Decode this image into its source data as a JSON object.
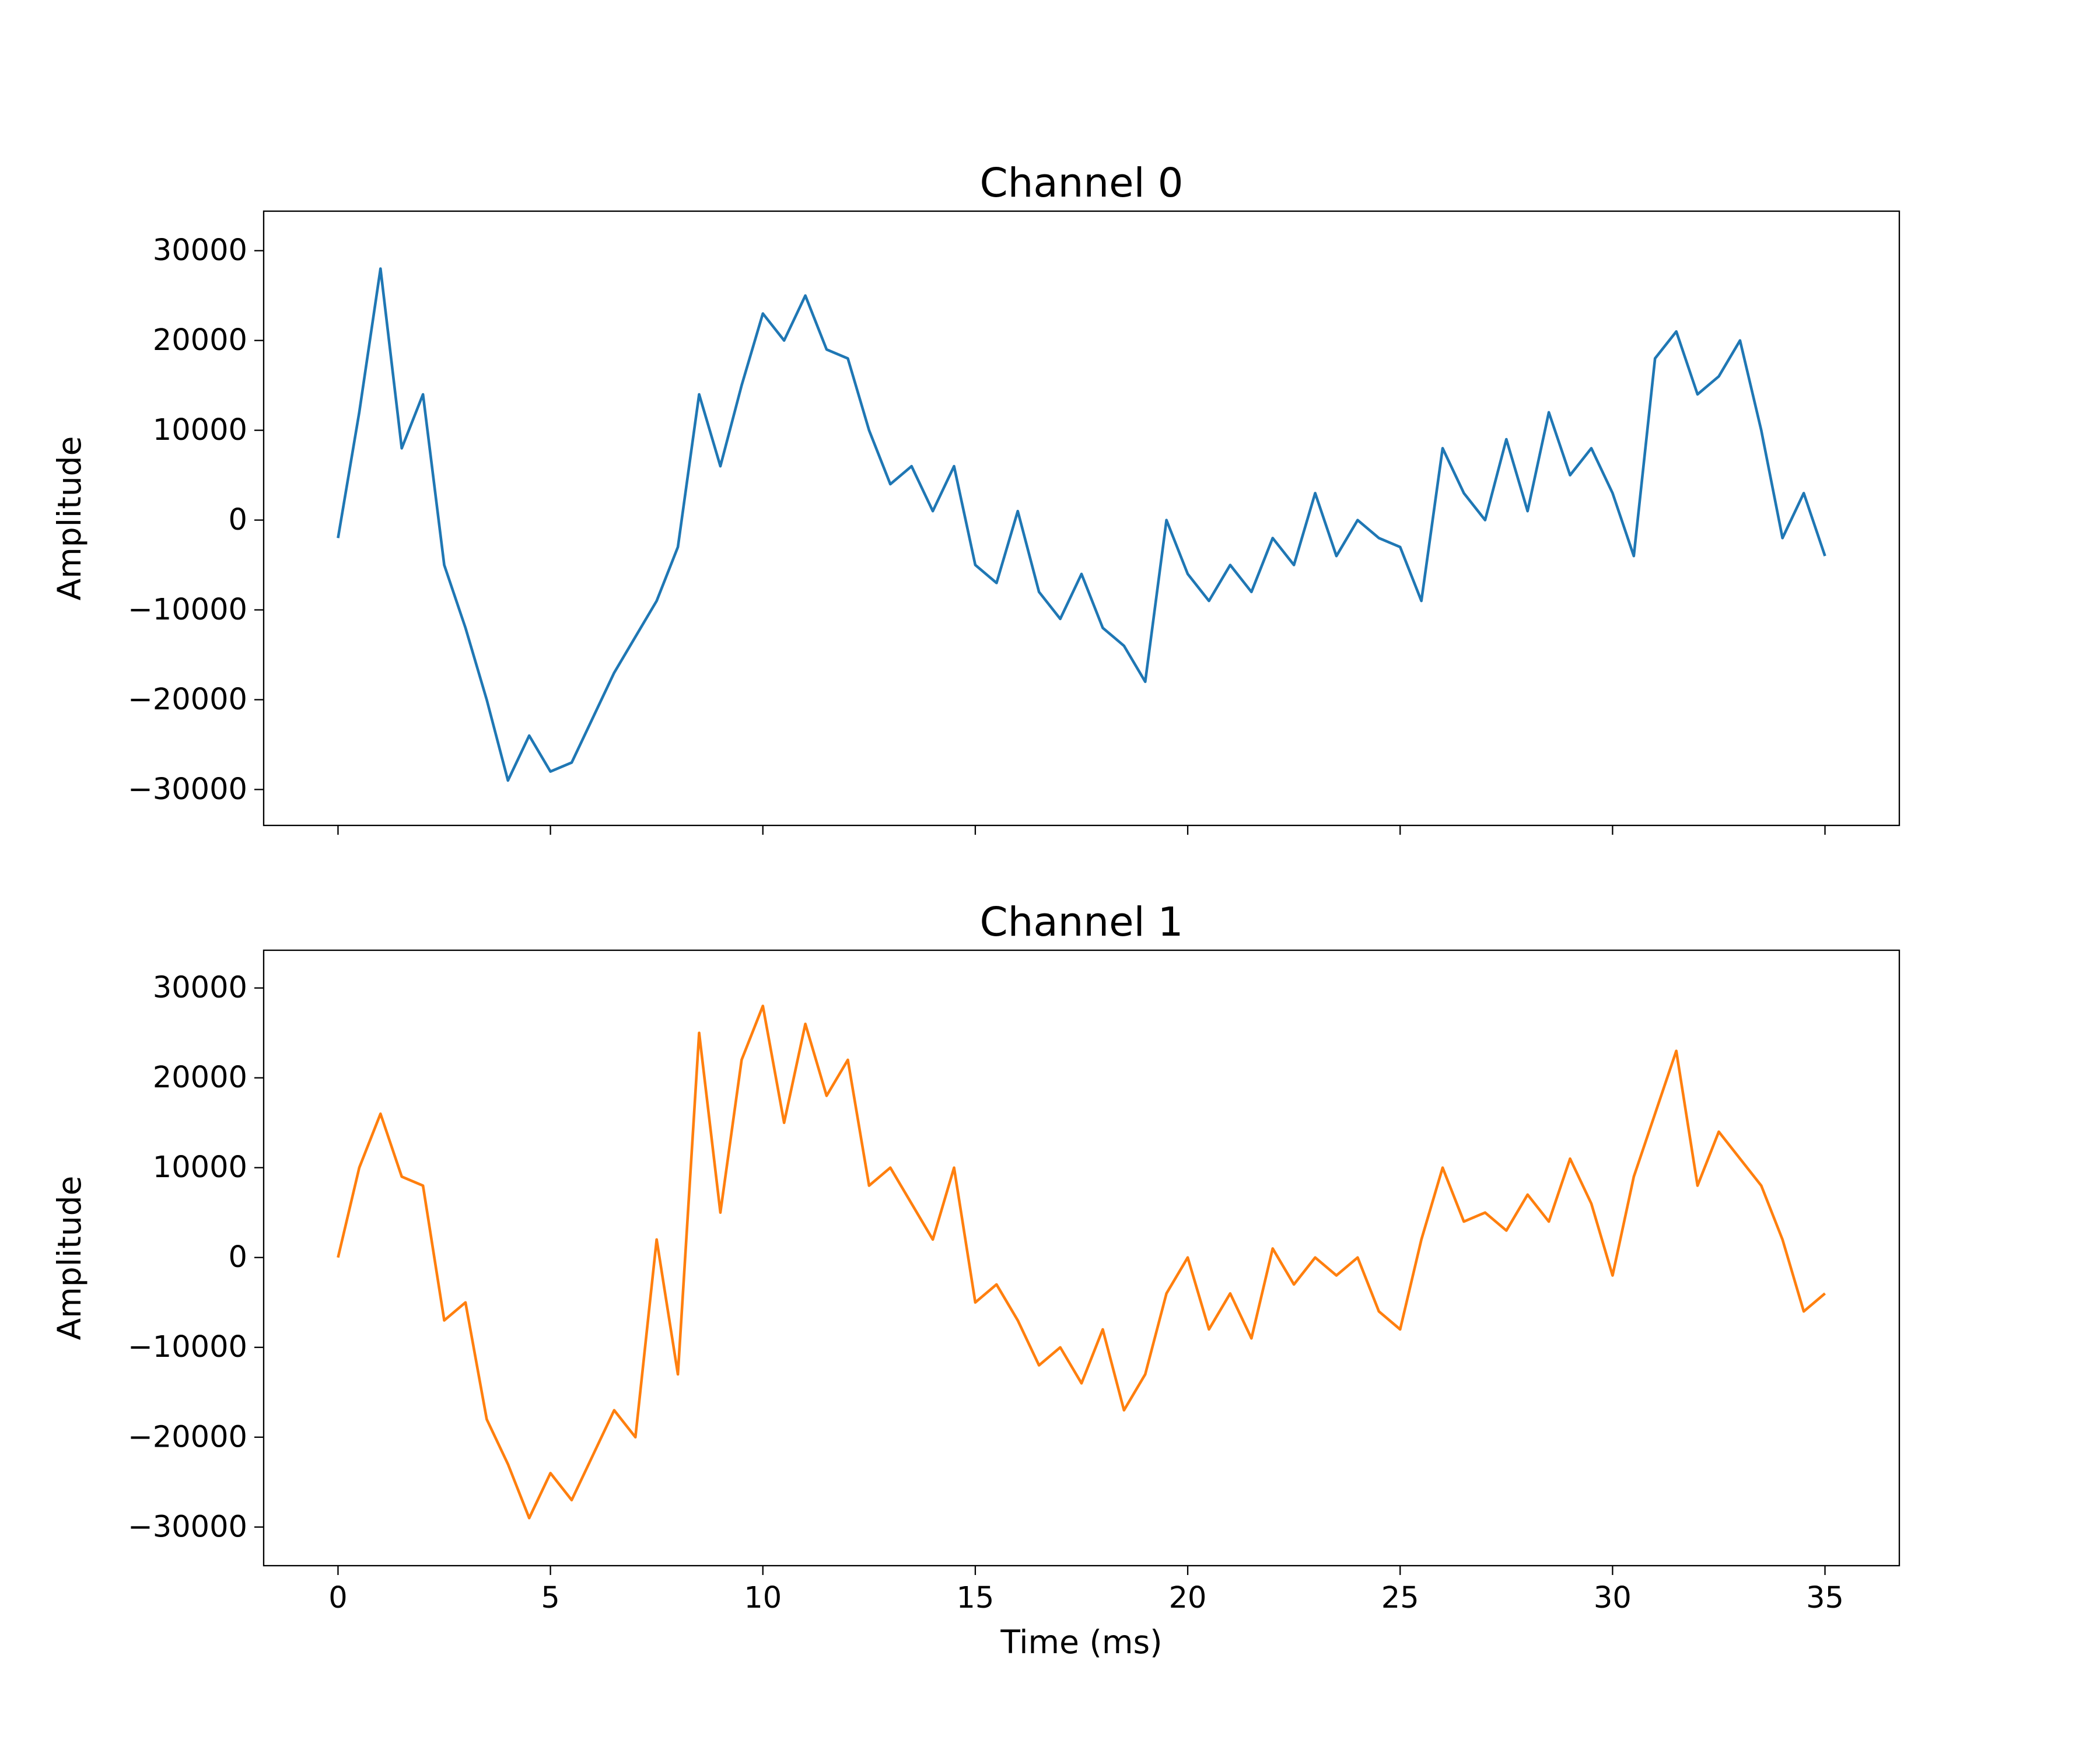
{
  "chart_data": [
    {
      "type": "line",
      "title": "Channel 0",
      "ylabel": "Amplitude",
      "color": "#1f77b4",
      "show_xticklabels": false,
      "x": [
        0,
        0.5,
        1,
        1.5,
        2,
        2.5,
        3,
        3.5,
        4,
        4.5,
        5,
        5.5,
        6,
        6.5,
        7,
        7.5,
        8,
        8.5,
        9,
        9.5,
        10,
        10.5,
        11,
        11.5,
        12,
        12.5,
        13,
        13.5,
        14,
        14.5,
        15,
        15.5,
        16,
        16.5,
        17,
        17.5,
        18,
        18.5,
        19,
        19.5,
        20,
        20.5,
        21,
        21.5,
        22,
        22.5,
        23,
        23.5,
        24,
        24.5,
        25,
        25.5,
        26,
        26.5,
        27,
        27.5,
        28,
        28.5,
        29,
        29.5,
        30,
        30.5,
        31,
        31.5,
        32,
        32.5,
        33,
        33.5,
        34,
        34.5,
        35
      ],
      "values": [
        -2000,
        12000,
        28000,
        8000,
        14000,
        -5000,
        -12000,
        -20000,
        -29000,
        -24000,
        -28000,
        -27000,
        -22000,
        -17000,
        -13000,
        -9000,
        -3000,
        14000,
        6000,
        15000,
        23000,
        20000,
        25000,
        19000,
        18000,
        10000,
        4000,
        6000,
        1000,
        6000,
        -5000,
        -7000,
        1000,
        -8000,
        -11000,
        -6000,
        -12000,
        -14000,
        -18000,
        0,
        -6000,
        -9000,
        -5000,
        -8000,
        -2000,
        -5000,
        3000,
        -4000,
        0,
        -2000,
        -3000,
        -9000,
        8000,
        3000,
        0,
        9000,
        1000,
        12000,
        5000,
        8000,
        3000,
        -4000,
        18000,
        21000,
        14000,
        16000,
        20000,
        10000,
        -2000,
        3000,
        -4000
      ],
      "xlim": [
        -1.75,
        36.75
      ],
      "ylim": [
        -34000,
        34400
      ],
      "xticks": [
        0,
        5,
        10,
        15,
        20,
        25,
        30,
        35
      ],
      "yticks": [
        {
          "value": -30000,
          "label": "−30000"
        },
        {
          "value": -20000,
          "label": "−20000"
        },
        {
          "value": -10000,
          "label": "−10000"
        },
        0,
        10000,
        20000,
        30000
      ]
    },
    {
      "type": "line",
      "title": "Channel 1",
      "ylabel": "Amplitude",
      "xlabel": "Time (ms)",
      "color": "#ff7f0e",
      "show_xticklabels": true,
      "x": [
        0,
        0.5,
        1,
        1.5,
        2,
        2.5,
        3,
        3.5,
        4,
        4.5,
        5,
        5.5,
        6,
        6.5,
        7,
        7.5,
        8,
        8.5,
        9,
        9.5,
        10,
        10.5,
        11,
        11.5,
        12,
        12.5,
        13,
        13.5,
        14,
        14.5,
        15,
        15.5,
        16,
        16.5,
        17,
        17.5,
        18,
        18.5,
        19,
        19.5,
        20,
        20.5,
        21,
        21.5,
        22,
        22.5,
        23,
        23.5,
        24,
        24.5,
        25,
        25.5,
        26,
        26.5,
        27,
        27.5,
        28,
        28.5,
        29,
        29.5,
        30,
        30.5,
        31,
        31.5,
        32,
        32.5,
        33,
        33.5,
        34,
        34.5,
        35
      ],
      "values": [
        0,
        10000,
        16000,
        9000,
        8000,
        -7000,
        -5000,
        -18000,
        -23000,
        -29000,
        -24000,
        -27000,
        -22000,
        -17000,
        -20000,
        2000,
        -13000,
        25000,
        5000,
        22000,
        28000,
        15000,
        26000,
        18000,
        22000,
        8000,
        10000,
        6000,
        2000,
        10000,
        -5000,
        -3000,
        -7000,
        -12000,
        -10000,
        -14000,
        -8000,
        -17000,
        -13000,
        -4000,
        0,
        -8000,
        -4000,
        -9000,
        1000,
        -3000,
        0,
        -2000,
        0,
        -6000,
        -8000,
        2000,
        10000,
        4000,
        5000,
        3000,
        7000,
        4000,
        11000,
        6000,
        -2000,
        9000,
        16000,
        23000,
        8000,
        14000,
        11000,
        8000,
        2000,
        -6000,
        -4000
      ],
      "xlim": [
        -1.75,
        36.75
      ],
      "ylim": [
        -34300,
        34200
      ],
      "xticks": [
        0,
        5,
        10,
        15,
        20,
        25,
        30,
        35
      ],
      "yticks": [
        {
          "value": -30000,
          "label": "−30000"
        },
        {
          "value": -20000,
          "label": "−20000"
        },
        {
          "value": -10000,
          "label": "−10000"
        },
        0,
        10000,
        20000,
        30000
      ]
    }
  ]
}
